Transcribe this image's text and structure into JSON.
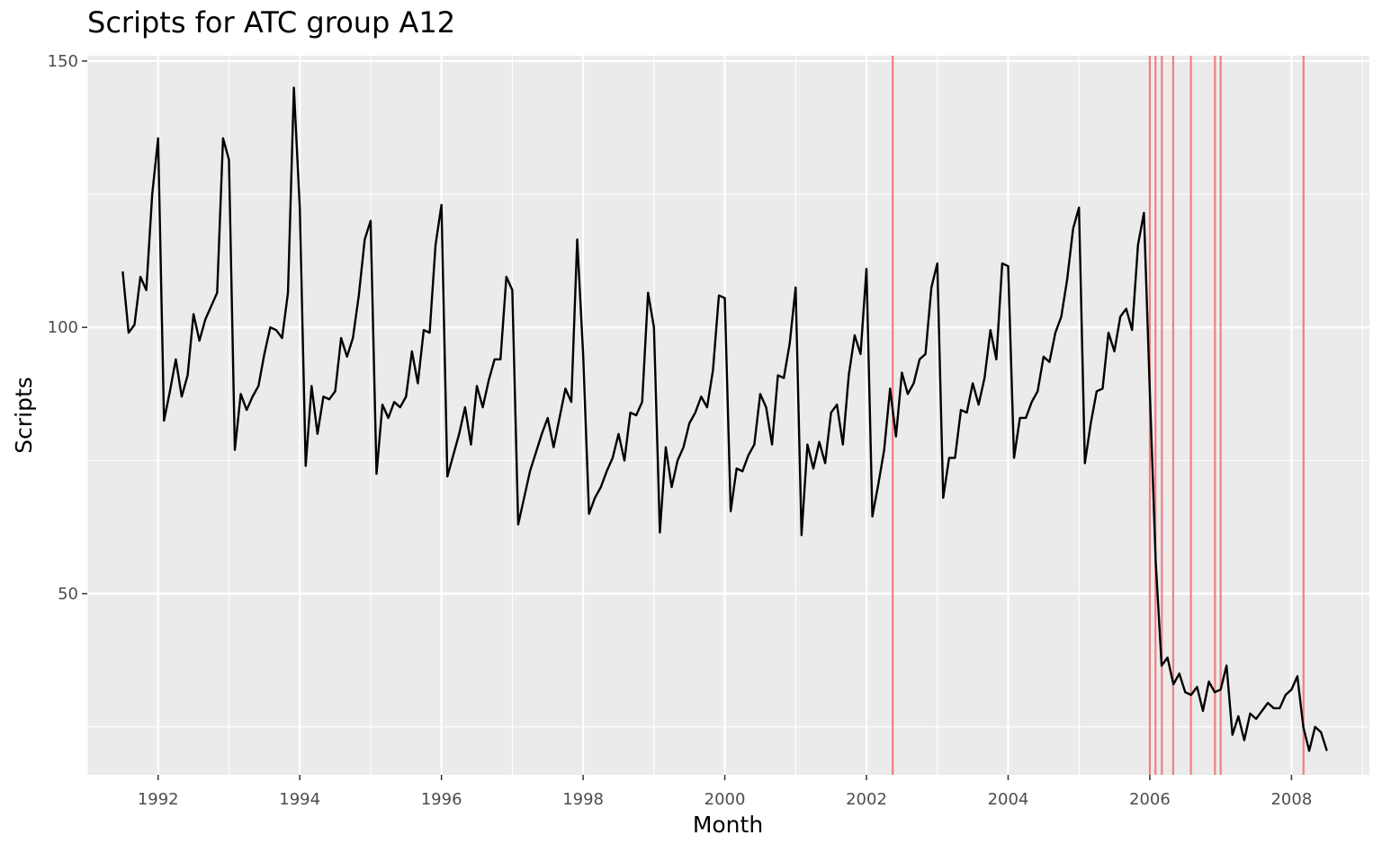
{
  "chart_data": {
    "type": "line",
    "title": "Scripts for ATC group A12",
    "xlabel": "Month",
    "ylabel": "Scripts",
    "x_start": "1991-07",
    "x_end": "2008-06",
    "xlim": [
      1991.0,
      2009.1
    ],
    "ylim": [
      16,
      151
    ],
    "x_ticks": [
      1992,
      1994,
      1996,
      1998,
      2000,
      2002,
      2004,
      2006,
      2008
    ],
    "x_tick_labels": [
      "1992",
      "1994",
      "1996",
      "1998",
      "2000",
      "2002",
      "2004",
      "2006",
      "2008"
    ],
    "y_ticks": [
      50,
      100,
      150
    ],
    "y_tick_labels": [
      "50",
      "100",
      "150"
    ],
    "grid": true,
    "colors": {
      "panel": "#ebebeb",
      "grid": "#ffffff",
      "line": "#000000",
      "vlines": "#f08080"
    },
    "series": [
      {
        "values": [
          110.5,
          99,
          100.5,
          109.5,
          107,
          125,
          135.5,
          82.5,
          88,
          94,
          87,
          91,
          102.5,
          97.5,
          101.5,
          104,
          106.5,
          135.5,
          131.5,
          77,
          87.5,
          84.5,
          87,
          89,
          95,
          100,
          99.5,
          98,
          106.5,
          145,
          122.5,
          74,
          89,
          80,
          87,
          86.5,
          88,
          98,
          94.5,
          98,
          106,
          116.5,
          120,
          72.5,
          85.5,
          83,
          86,
          85,
          87,
          95.5,
          89.5,
          99.5,
          99,
          115.5,
          123,
          72,
          76,
          80,
          85,
          78,
          89,
          85,
          90,
          94,
          94,
          109.5,
          107,
          63,
          68,
          73,
          76.5,
          80,
          83,
          77.5,
          83,
          88.5,
          86,
          116.5,
          95,
          65,
          68,
          70,
          73,
          75.5,
          80,
          75,
          84,
          83.5,
          86,
          106.5,
          100,
          61.5,
          77.5,
          70,
          75,
          77.5,
          82,
          84,
          87,
          85,
          92,
          106,
          105.5,
          65.5,
          73.5,
          73,
          76,
          78,
          87.5,
          85,
          78,
          91,
          90.5,
          97,
          107.5,
          61,
          78,
          73.5,
          78.5,
          74.5,
          84,
          85.5,
          78,
          91,
          98.5,
          95,
          111,
          64.5,
          70.5,
          77,
          88.5,
          79.5,
          91.5,
          87.5,
          89.5,
          94,
          95,
          107.5,
          112,
          68,
          75.5,
          75.5,
          84.5,
          84,
          89.5,
          85.5,
          90.5,
          99.5,
          94,
          112,
          111.5,
          75.5,
          83,
          83,
          86,
          88,
          94.5,
          93.5,
          99,
          102,
          109,
          118.5,
          122.5,
          74.5,
          82,
          88,
          88.5,
          99,
          95.5,
          102,
          103.5,
          99.5,
          115.5,
          121.5,
          88,
          56,
          36.5,
          38,
          33,
          35,
          31.5,
          31,
          32.5,
          28,
          33.5,
          31.5,
          32,
          36.5,
          23.5,
          27,
          22.5,
          27.5,
          26.5,
          28,
          29.5,
          28.5,
          28.5,
          31,
          32,
          34.5,
          25,
          20.5,
          25,
          24,
          20.5
        ]
      }
    ],
    "vertical_lines": [
      2002.37,
      2006.0,
      2006.08,
      2006.17,
      2006.33,
      2006.58,
      2006.92,
      2007.0,
      2008.17
    ]
  }
}
